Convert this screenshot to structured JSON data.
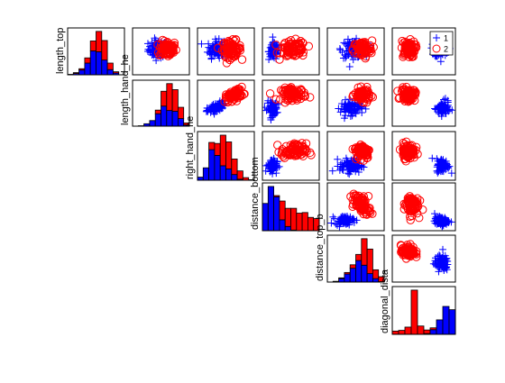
{
  "chart_data": {
    "type": "scatter-matrix",
    "variables": [
      "length_top",
      "length_hand_he",
      "right_hand_he",
      "distance_bottom",
      "distance_top_b",
      "diagonal_dista"
    ],
    "groups": [
      {
        "name": "1",
        "marker": "+",
        "color": "#0000ff"
      },
      {
        "name": "2",
        "marker": "o",
        "color": "#ff0000"
      }
    ],
    "legend": {
      "placement": "top-right",
      "entries": [
        "1",
        "2"
      ]
    },
    "grid": false,
    "axis_ticks": "none",
    "layout": "lower-triangle-blank",
    "diagonal": {
      "type": "stacked-histogram",
      "bins": 10,
      "counts": [
        {
          "variable": "length_top",
          "group1": [
            1,
            3,
            11,
            27,
            55,
            53,
            34,
            12,
            4,
            0
          ],
          "group2": [
            0,
            2,
            3,
            12,
            23,
            47,
            45,
            15,
            3,
            0
          ]
        },
        {
          "variable": "length_hand_he",
          "group1": [
            0,
            1,
            6,
            14,
            31,
            50,
            39,
            37,
            19,
            3
          ],
          "group2": [
            0,
            0,
            0,
            0,
            9,
            37,
            67,
            54,
            28,
            5
          ]
        },
        {
          "variable": "right_hand_he",
          "group1": [
            6,
            24,
            59,
            48,
            28,
            22,
            11,
            2,
            0,
            0
          ],
          "group2": [
            0,
            0,
            14,
            23,
            59,
            52,
            30,
            16,
            5,
            1
          ]
        },
        {
          "variable": "distance_bottom",
          "group1": [
            45,
            73,
            56,
            18,
            7,
            1,
            0,
            0,
            0,
            0
          ],
          "group2": [
            0,
            0,
            2,
            31,
            30,
            36,
            29,
            30,
            22,
            20
          ]
        },
        {
          "variable": "distance_top_b",
          "group1": [
            0,
            2,
            9,
            21,
            36,
            56,
            44,
            22,
            9,
            1
          ],
          "group2": [
            0,
            0,
            2,
            4,
            9,
            16,
            69,
            64,
            23,
            13
          ]
        },
        {
          "variable": "diagonal_dista",
          "group1": [
            0,
            0,
            0,
            0,
            0,
            2,
            13,
            40,
            77,
            68
          ],
          "group2": [
            9,
            11,
            20,
            122,
            23,
            10,
            5,
            0,
            0,
            0
          ]
        }
      ]
    },
    "scatter_panels": [
      {
        "x": "length_hand_he",
        "y": "length_top",
        "group1": {
          "cx": 0.44,
          "cy": 0.55,
          "sx": 0.15,
          "sy": 0.17,
          "n": 80
        },
        "group2": {
          "cx": 0.62,
          "cy": 0.55,
          "sx": 0.14,
          "sy": 0.16,
          "n": 80
        }
      },
      {
        "x": "right_hand_he",
        "y": "length_top",
        "group1": {
          "cx": 0.32,
          "cy": 0.55,
          "sx": 0.13,
          "sy": 0.17,
          "n": 80
        },
        "group2": {
          "cx": 0.6,
          "cy": 0.55,
          "sx": 0.15,
          "sy": 0.16,
          "n": 80
        }
      },
      {
        "x": "distance_bottom",
        "y": "length_top",
        "group1": {
          "cx": 0.2,
          "cy": 0.5,
          "sx": 0.08,
          "sy": 0.17,
          "n": 80
        },
        "group2": {
          "cx": 0.55,
          "cy": 0.55,
          "sx": 0.2,
          "sy": 0.16,
          "n": 80
        }
      },
      {
        "x": "distance_top_b",
        "y": "length_top",
        "group1": {
          "cx": 0.45,
          "cy": 0.55,
          "sx": 0.18,
          "sy": 0.17,
          "n": 80
        },
        "group2": {
          "cx": 0.62,
          "cy": 0.55,
          "sx": 0.15,
          "sy": 0.16,
          "n": 80
        }
      },
      {
        "x": "diagonal_dista",
        "y": "length_top",
        "group1": {
          "cx": 0.78,
          "cy": 0.55,
          "sx": 0.1,
          "sy": 0.17,
          "n": 80
        },
        "group2": {
          "cx": 0.25,
          "cy": 0.55,
          "sx": 0.1,
          "sy": 0.16,
          "n": 80
        }
      },
      {
        "x": "right_hand_he",
        "y": "length_hand_he",
        "group1": {
          "cx": 0.33,
          "cy": 0.4,
          "sx": 0.14,
          "sy": 0.12,
          "n": 80,
          "corr": 0.6
        },
        "group2": {
          "cx": 0.65,
          "cy": 0.68,
          "sx": 0.14,
          "sy": 0.12,
          "n": 80,
          "corr": 0.5
        }
      },
      {
        "x": "distance_bottom",
        "y": "length_hand_he",
        "group1": {
          "cx": 0.17,
          "cy": 0.38,
          "sx": 0.08,
          "sy": 0.14,
          "n": 80
        },
        "group2": {
          "cx": 0.55,
          "cy": 0.7,
          "sx": 0.2,
          "sy": 0.12,
          "n": 80
        }
      },
      {
        "x": "distance_top_b",
        "y": "length_hand_he",
        "group1": {
          "cx": 0.42,
          "cy": 0.4,
          "sx": 0.17,
          "sy": 0.14,
          "n": 80
        },
        "group2": {
          "cx": 0.62,
          "cy": 0.68,
          "sx": 0.12,
          "sy": 0.12,
          "n": 80
        }
      },
      {
        "x": "diagonal_dista",
        "y": "length_hand_he",
        "group1": {
          "cx": 0.8,
          "cy": 0.38,
          "sx": 0.09,
          "sy": 0.14,
          "n": 80
        },
        "group2": {
          "cx": 0.25,
          "cy": 0.68,
          "sx": 0.1,
          "sy": 0.12,
          "n": 80
        }
      },
      {
        "x": "distance_bottom",
        "y": "right_hand_he",
        "group1": {
          "cx": 0.17,
          "cy": 0.3,
          "sx": 0.08,
          "sy": 0.13,
          "n": 80
        },
        "group2": {
          "cx": 0.55,
          "cy": 0.6,
          "sx": 0.2,
          "sy": 0.14,
          "n": 80
        }
      },
      {
        "x": "distance_top_b",
        "y": "right_hand_he",
        "group1": {
          "cx": 0.42,
          "cy": 0.3,
          "sx": 0.18,
          "sy": 0.13,
          "n": 80
        },
        "group2": {
          "cx": 0.62,
          "cy": 0.6,
          "sx": 0.12,
          "sy": 0.14,
          "n": 80
        }
      },
      {
        "x": "diagonal_dista",
        "y": "right_hand_he",
        "group1": {
          "cx": 0.8,
          "cy": 0.3,
          "sx": 0.09,
          "sy": 0.13,
          "n": 80
        },
        "group2": {
          "cx": 0.25,
          "cy": 0.6,
          "sx": 0.1,
          "sy": 0.14,
          "n": 80
        }
      },
      {
        "x": "distance_top_b",
        "y": "distance_bottom",
        "group1": {
          "cx": 0.3,
          "cy": 0.22,
          "sx": 0.15,
          "sy": 0.08,
          "n": 80
        },
        "group2": {
          "cx": 0.6,
          "cy": 0.55,
          "sx": 0.14,
          "sy": 0.2,
          "n": 80,
          "corr": -0.5
        }
      },
      {
        "x": "diagonal_dista",
        "y": "distance_bottom",
        "group1": {
          "cx": 0.78,
          "cy": 0.2,
          "sx": 0.1,
          "sy": 0.08,
          "n": 80
        },
        "group2": {
          "cx": 0.3,
          "cy": 0.55,
          "sx": 0.1,
          "sy": 0.2,
          "n": 80
        }
      },
      {
        "x": "diagonal_dista",
        "y": "distance_top_b",
        "group1": {
          "cx": 0.78,
          "cy": 0.4,
          "sx": 0.1,
          "sy": 0.15,
          "n": 80
        },
        "group2": {
          "cx": 0.25,
          "cy": 0.65,
          "sx": 0.1,
          "sy": 0.12,
          "n": 80
        }
      }
    ]
  }
}
